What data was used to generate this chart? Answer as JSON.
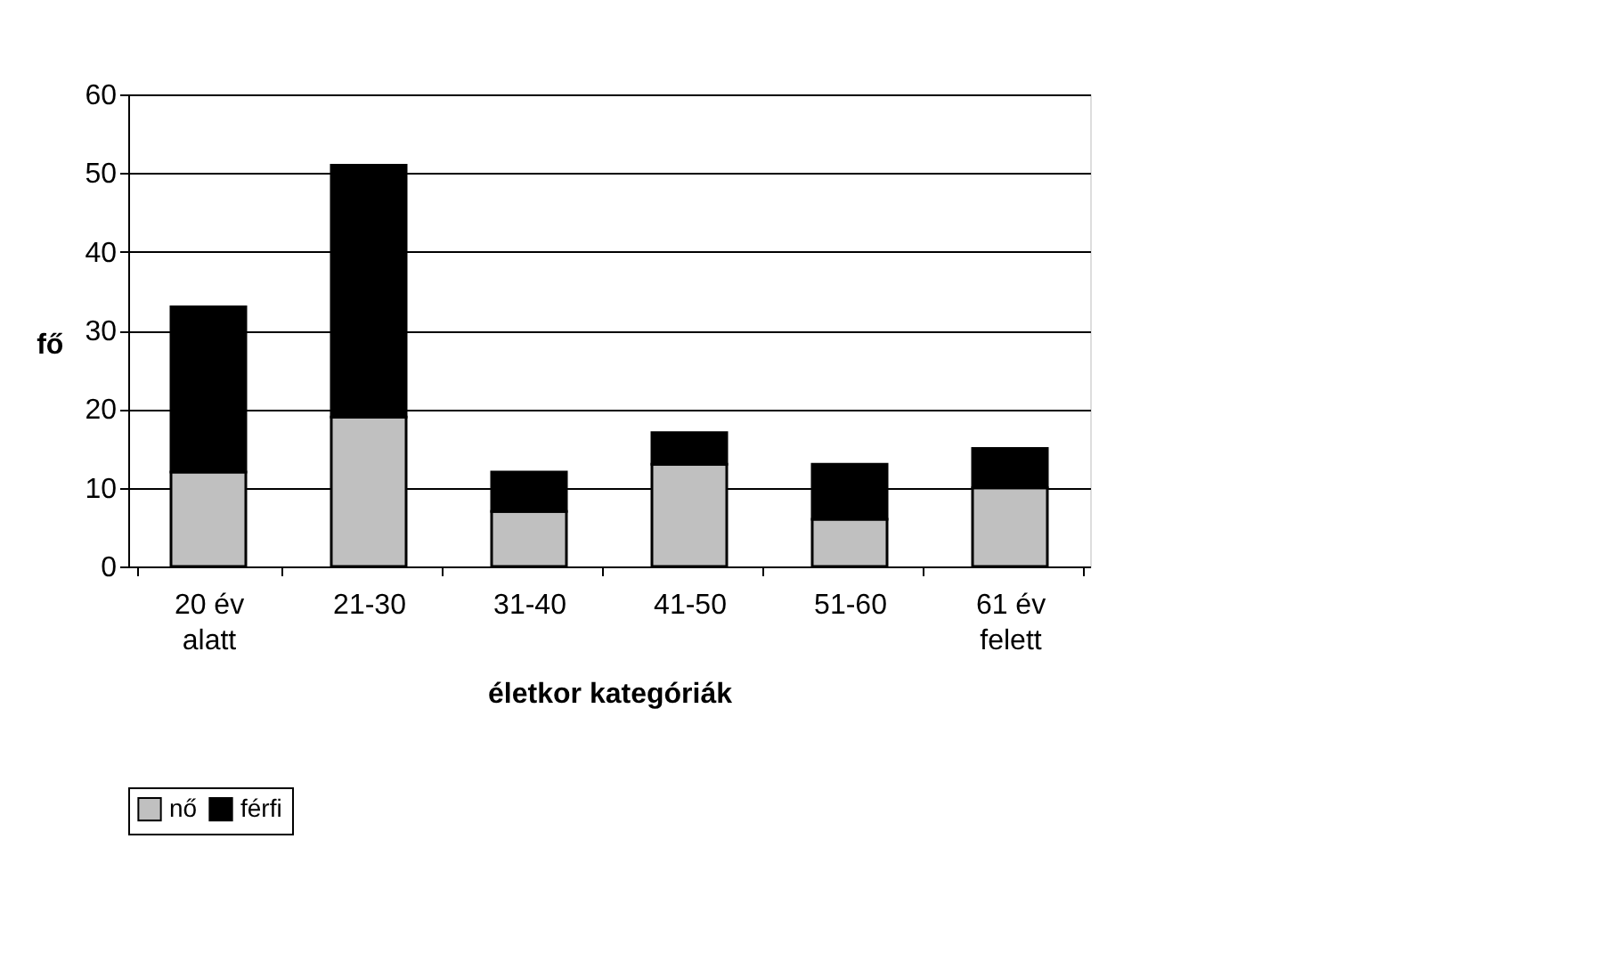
{
  "chart_data": {
    "type": "bar",
    "stacked": true,
    "xlabel": "életkor kategóriák",
    "ylabel": "fő",
    "categories": [
      "20 év alatt",
      "21-30",
      "31-40",
      "41-50",
      "51-60",
      "61 év felett"
    ],
    "series": [
      {
        "name": "nő",
        "color": "#c0c0c0",
        "values": [
          12,
          19,
          7,
          13,
          6,
          10
        ]
      },
      {
        "name": "férfi",
        "color": "#000000",
        "values": [
          21,
          32,
          5,
          4,
          7,
          5
        ]
      }
    ],
    "ylim": [
      0,
      60
    ],
    "yticks": [
      0,
      10,
      20,
      30,
      40,
      50,
      60
    ],
    "grid": "y",
    "legend": "bottom"
  }
}
